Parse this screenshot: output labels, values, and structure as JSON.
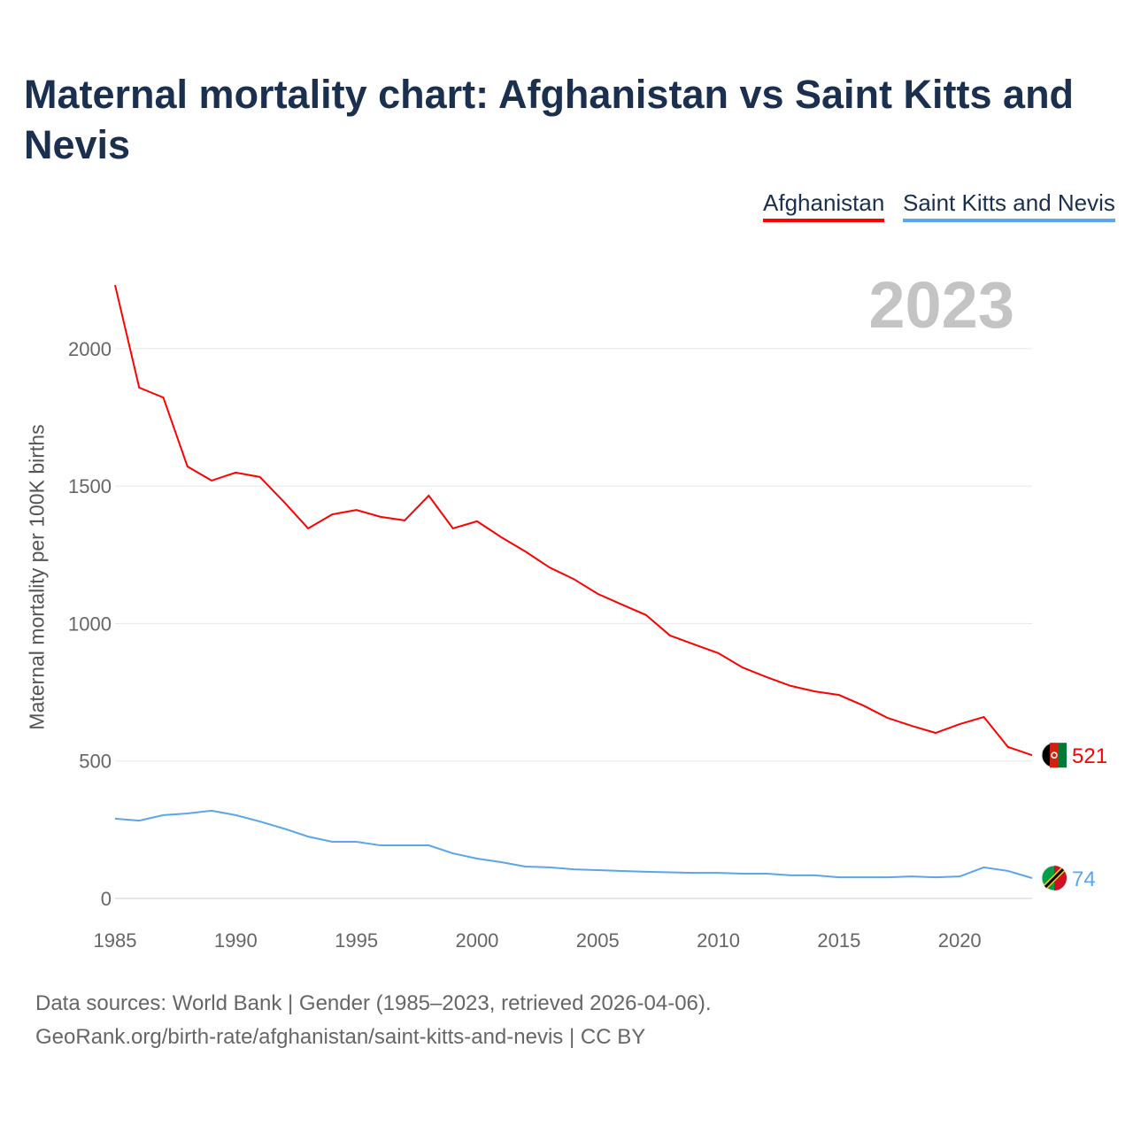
{
  "title": "Maternal mortality chart: Afghanistan vs Saint Kitts and Nevis",
  "year_label": "2023",
  "sources": [
    "Data sources: World Bank | Gender (1985–2023, retrieved 2026-04-06).",
    "GeoRank.org/birth-rate/afghanistan/saint-kitts-and-nevis | CC BY"
  ],
  "chart_data": {
    "type": "line",
    "title": "Maternal mortality chart: Afghanistan vs Saint Kitts and Nevis",
    "xlabel": "",
    "ylabel": "Maternal mortality per 100K births",
    "xlim": [
      1985,
      2023
    ],
    "ylim": [
      0,
      2250
    ],
    "xticks": [
      1985,
      1990,
      1995,
      2000,
      2005,
      2010,
      2015,
      2020
    ],
    "yticks": [
      0,
      500,
      1000,
      1500,
      2000
    ],
    "grid": true,
    "legend": "top-right",
    "x": [
      1985,
      1986,
      1987,
      1988,
      1989,
      1990,
      1991,
      1992,
      1993,
      1994,
      1995,
      1996,
      1997,
      1998,
      1999,
      2000,
      2001,
      2002,
      2003,
      2004,
      2005,
      2006,
      2007,
      2008,
      2009,
      2010,
      2011,
      2012,
      2013,
      2014,
      2015,
      2016,
      2017,
      2018,
      2019,
      2020,
      2021,
      2022,
      2023
    ],
    "series": [
      {
        "name": "Afghanistan",
        "color": "#ff0000",
        "end_label": "521",
        "values": [
          2231,
          1858,
          1822,
          1571,
          1520,
          1549,
          1533,
          1442,
          1346,
          1397,
          1413,
          1388,
          1375,
          1465,
          1346,
          1372,
          1314,
          1262,
          1204,
          1162,
          1108,
          1069,
          1031,
          956,
          924,
          892,
          840,
          805,
          773,
          753,
          740,
          702,
          657,
          628,
          602,
          634,
          660,
          551,
          521
        ]
      },
      {
        "name": "Saint Kitts and Nevis",
        "color": "#5aa5ec",
        "end_label": "74",
        "values": [
          290,
          283,
          303,
          309,
          319,
          303,
          280,
          254,
          225,
          206,
          206,
          193,
          193,
          193,
          164,
          145,
          132,
          116,
          113,
          106,
          103,
          100,
          97,
          95,
          93,
          93,
          90,
          90,
          84,
          84,
          77,
          77,
          77,
          80,
          77,
          80,
          113,
          100,
          74
        ]
      }
    ]
  }
}
